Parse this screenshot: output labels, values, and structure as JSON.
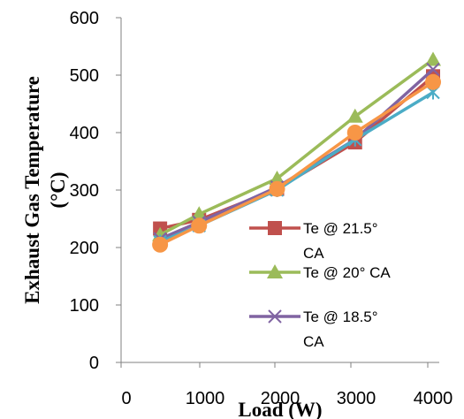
{
  "chart_data": {
    "type": "line",
    "xlabel": "Load (W)",
    "ylabel_lines": [
      "Exhaust Gas Temperature",
      "(°C)"
    ],
    "x_ticks": [
      "0",
      "1000",
      "2000",
      "3000",
      "4000"
    ],
    "y_ticks": [
      "0",
      "100",
      "200",
      "300",
      "400",
      "500",
      "600"
    ],
    "ylim": [
      0,
      600
    ],
    "x": [
      500,
      1000,
      2000,
      3000,
      4000
    ],
    "grid": false,
    "legend_position": "right",
    "series": [
      {
        "name": "Te @ 21.5° CA",
        "legend_lines": [
          "Te @ 21.5°",
          "CA"
        ],
        "color": "#c0504d",
        "marker": "square",
        "values": [
          233,
          248,
          302,
          383,
          498
        ]
      },
      {
        "name": "Te @ 20° CA",
        "legend_lines": [
          "Te @ 20° CA"
        ],
        "color": "#9bbb59",
        "marker": "triangle",
        "values": [
          222,
          258,
          320,
          428,
          527
        ]
      },
      {
        "name": "Te @ 18.5° CA",
        "legend_lines": [
          "Te @ 18.5°",
          "CA"
        ],
        "color": "#8064a2",
        "marker": "x",
        "values": [
          215,
          244,
          305,
          388,
          510
        ]
      },
      {
        "name": "",
        "legend_lines": [],
        "color": "#4bacc6",
        "marker": "star",
        "values": [
          210,
          238,
          300,
          388,
          470
        ]
      },
      {
        "name": "",
        "legend_lines": [],
        "color": "#f79646",
        "marker": "circle",
        "values": [
          205,
          238,
          302,
          400,
          488
        ]
      }
    ]
  }
}
